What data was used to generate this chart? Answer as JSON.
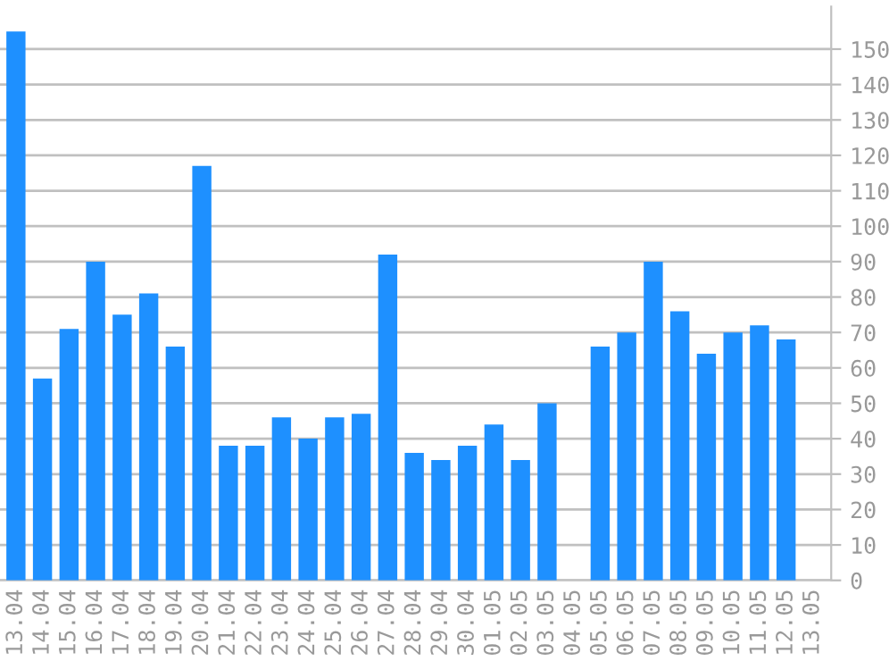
{
  "chart_data": {
    "type": "bar",
    "categories": [
      "13.04",
      "14.04",
      "15.04",
      "16.04",
      "17.04",
      "18.04",
      "19.04",
      "20.04",
      "21.04",
      "22.04",
      "23.04",
      "24.04",
      "25.04",
      "26.04",
      "27.04",
      "28.04",
      "29.04",
      "30.04",
      "01.05",
      "02.05",
      "03.05",
      "04.05",
      "05.05",
      "06.05",
      "07.05",
      "08.05",
      "09.05",
      "10.05",
      "11.05",
      "12.05",
      "13.05"
    ],
    "values": [
      155,
      57,
      71,
      90,
      75,
      81,
      66,
      117,
      38,
      38,
      46,
      40,
      46,
      47,
      92,
      36,
      34,
      38,
      44,
      34,
      50,
      0,
      66,
      70,
      90,
      76,
      64,
      70,
      72,
      68,
      0
    ],
    "color": "#1e90ff",
    "ylim": [
      0,
      162
    ],
    "yticks": [
      0,
      10,
      20,
      30,
      40,
      50,
      60,
      70,
      80,
      90,
      100,
      110,
      120,
      130,
      140,
      150
    ],
    "grid": "y"
  }
}
